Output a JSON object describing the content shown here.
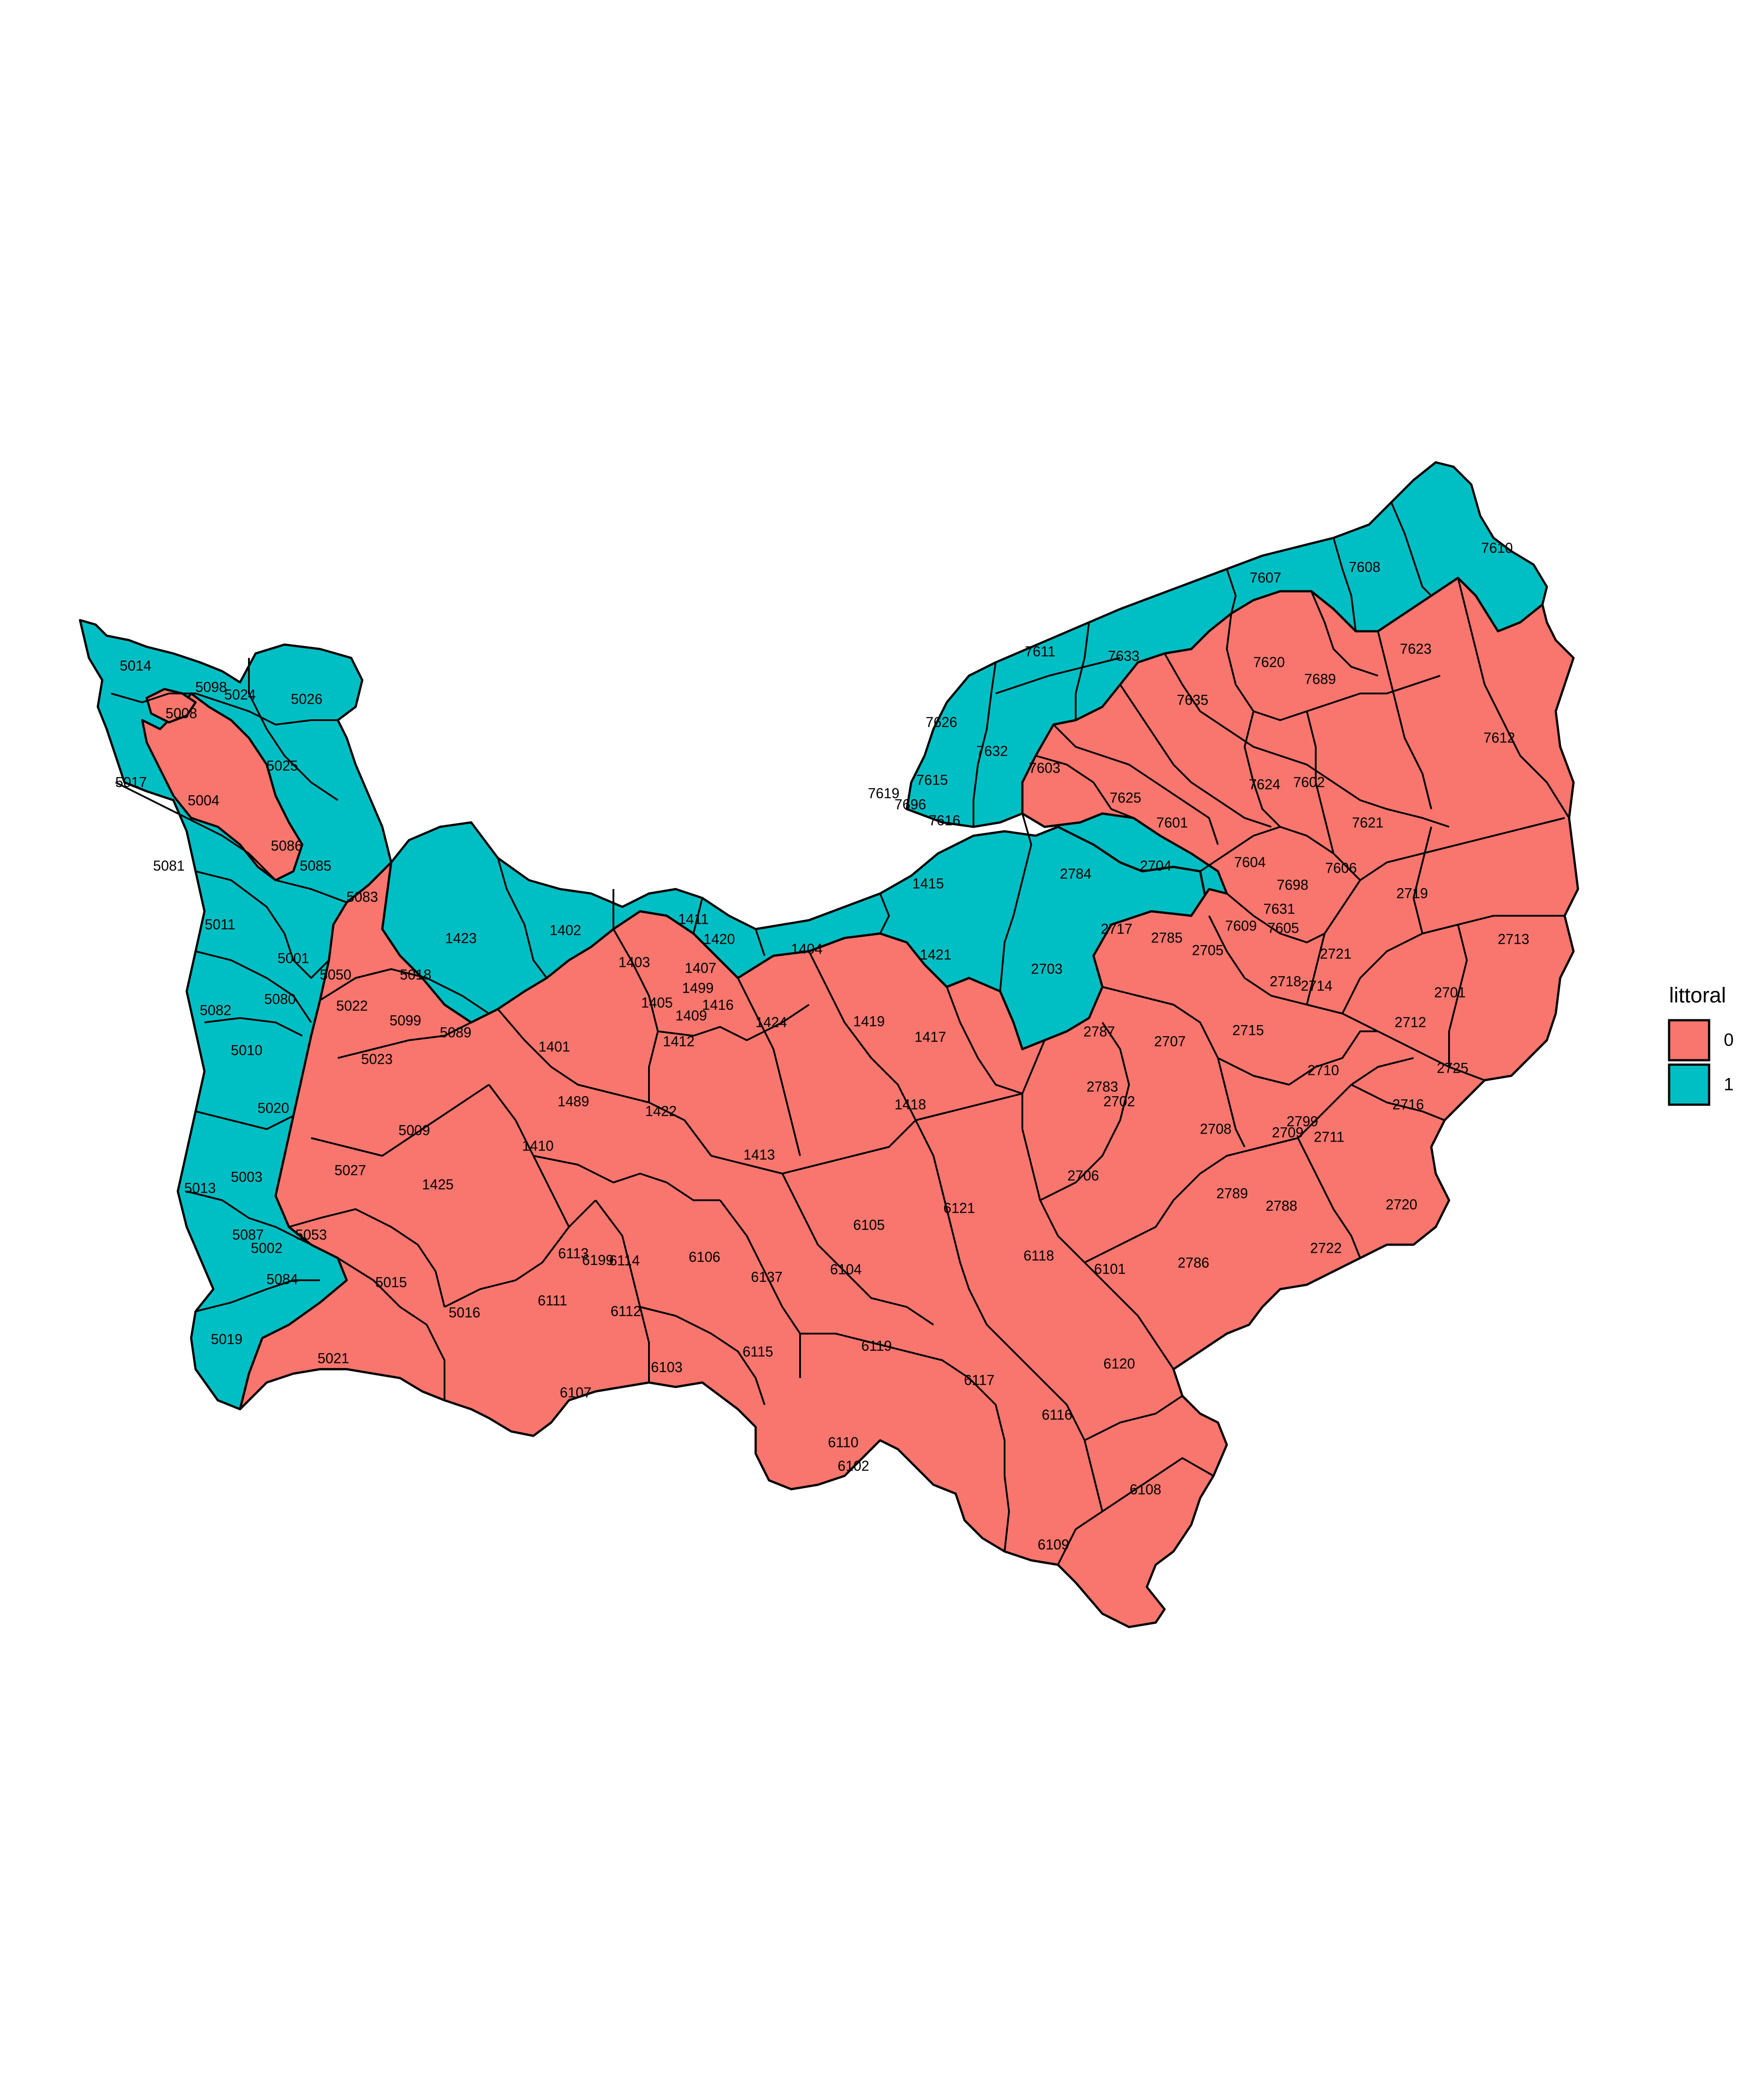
{
  "legend": {
    "title": "littoral",
    "items": [
      {
        "key": "0",
        "label": "0",
        "color": "#F8766D"
      },
      {
        "key": "1",
        "label": "1",
        "color": "#00BFC4"
      }
    ]
  },
  "zones": [
    {
      "id": "5014",
      "label": "5014",
      "littoral": 1
    },
    {
      "id": "5098",
      "label": "5098",
      "littoral": 1
    },
    {
      "id": "5024",
      "label": "5024",
      "littoral": 1
    },
    {
      "id": "5026",
      "label": "5026",
      "littoral": 1
    },
    {
      "id": "5008",
      "label": "5008",
      "littoral": 0
    },
    {
      "id": "5025",
      "label": "5025",
      "littoral": 1
    },
    {
      "id": "5017",
      "label": "5017",
      "littoral": 1
    },
    {
      "id": "5004",
      "label": "5004",
      "littoral": 0
    },
    {
      "id": "5086",
      "label": "5086",
      "littoral": 0
    },
    {
      "id": "5081",
      "label": "5081",
      "littoral": 1
    },
    {
      "id": "5085",
      "label": "5085",
      "littoral": 1
    },
    {
      "id": "5083",
      "label": "5083",
      "littoral": 1
    },
    {
      "id": "5011",
      "label": "5011",
      "littoral": 1
    },
    {
      "id": "5001",
      "label": "5001",
      "littoral": 1
    },
    {
      "id": "5080",
      "label": "5080",
      "littoral": 1
    },
    {
      "id": "5082",
      "label": "5082",
      "littoral": 1
    },
    {
      "id": "5010",
      "label": "5010",
      "littoral": 1
    },
    {
      "id": "5020",
      "label": "5020",
      "littoral": 1
    },
    {
      "id": "5013",
      "label": "5013",
      "littoral": 1
    },
    {
      "id": "5003",
      "label": "5003",
      "littoral": 1
    },
    {
      "id": "5087",
      "label": "5087",
      "littoral": 1
    },
    {
      "id": "5002",
      "label": "5002",
      "littoral": 1
    },
    {
      "id": "5084",
      "label": "5084",
      "littoral": 1
    },
    {
      "id": "5019",
      "label": "5019",
      "littoral": 1
    },
    {
      "id": "5050",
      "label": "5050",
      "littoral": 0
    },
    {
      "id": "5022",
      "label": "5022",
      "littoral": 0
    },
    {
      "id": "5018",
      "label": "5018",
      "littoral": 0
    },
    {
      "id": "5099",
      "label": "5099",
      "littoral": 0
    },
    {
      "id": "5089",
      "label": "5089",
      "littoral": 0
    },
    {
      "id": "5023",
      "label": "5023",
      "littoral": 0
    },
    {
      "id": "5009",
      "label": "5009",
      "littoral": 0
    },
    {
      "id": "5027",
      "label": "5027",
      "littoral": 0
    },
    {
      "id": "5053",
      "label": "5053",
      "littoral": 0
    },
    {
      "id": "5015",
      "label": "5015",
      "littoral": 0
    },
    {
      "id": "5016",
      "label": "5016",
      "littoral": 0
    },
    {
      "id": "5021",
      "label": "5021",
      "littoral": 0
    },
    {
      "id": "1423",
      "label": "1423",
      "littoral": 1
    },
    {
      "id": "1402",
      "label": "1402",
      "littoral": 1
    },
    {
      "id": "1411",
      "label": "1411",
      "littoral": 1
    },
    {
      "id": "1420",
      "label": "1420",
      "littoral": 1
    },
    {
      "id": "1404",
      "label": "1404",
      "littoral": 1
    },
    {
      "id": "1415",
      "label": "1415",
      "littoral": 1
    },
    {
      "id": "1421",
      "label": "1421",
      "littoral": 1
    },
    {
      "id": "2703",
      "label": "2703",
      "littoral": 1
    },
    {
      "id": "2704",
      "label": "2704",
      "littoral": 1
    },
    {
      "id": "1403",
      "label": "1403",
      "littoral": 0
    },
    {
      "id": "1407",
      "label": "1407",
      "littoral": 0
    },
    {
      "id": "1499",
      "label": "1499",
      "littoral": 0
    },
    {
      "id": "1405",
      "label": "1405",
      "littoral": 0
    },
    {
      "id": "1409",
      "label": "1409",
      "littoral": 0
    },
    {
      "id": "1416",
      "label": "1416",
      "littoral": 0
    },
    {
      "id": "1412",
      "label": "1412",
      "littoral": 0
    },
    {
      "id": "1424",
      "label": "1424",
      "littoral": 0
    },
    {
      "id": "1419",
      "label": "1419",
      "littoral": 0
    },
    {
      "id": "1417",
      "label": "1417",
      "littoral": 0
    },
    {
      "id": "1401",
      "label": "1401",
      "littoral": 0
    },
    {
      "id": "1489",
      "label": "1489",
      "littoral": 0
    },
    {
      "id": "1422",
      "label": "1422",
      "littoral": 0
    },
    {
      "id": "1418",
      "label": "1418",
      "littoral": 0
    },
    {
      "id": "1410",
      "label": "1410",
      "littoral": 0
    },
    {
      "id": "1413",
      "label": "1413",
      "littoral": 0
    },
    {
      "id": "1425",
      "label": "1425",
      "littoral": 0
    },
    {
      "id": "7626",
      "label": "7626",
      "littoral": 1
    },
    {
      "id": "7611",
      "label": "7611",
      "littoral": 1
    },
    {
      "id": "7633",
      "label": "7633",
      "littoral": 1
    },
    {
      "id": "7607",
      "label": "7607",
      "littoral": 1
    },
    {
      "id": "7603",
      "label": "7603",
      "littoral": 1
    },
    {
      "id": "7608",
      "label": "7608",
      "littoral": 1
    },
    {
      "id": "7610",
      "label": "7610",
      "littoral": 1
    },
    {
      "id": "7632",
      "label": "7632",
      "littoral": 1
    },
    {
      "id": "7619",
      "label": "7619",
      "littoral": 1
    },
    {
      "id": "7615",
      "label": "7615",
      "littoral": 1
    },
    {
      "id": "7696",
      "label": "7696",
      "littoral": 1
    },
    {
      "id": "7616",
      "label": "7616",
      "littoral": 1
    },
    {
      "id": "7620",
      "label": "7620",
      "littoral": 0
    },
    {
      "id": "7689",
      "label": "7689",
      "littoral": 0
    },
    {
      "id": "7623",
      "label": "7623",
      "littoral": 0
    },
    {
      "id": "7635",
      "label": "7635",
      "littoral": 0
    },
    {
      "id": "7612",
      "label": "7612",
      "littoral": 0
    },
    {
      "id": "7603b",
      "label": "7603",
      "littoral": 0
    },
    {
      "id": "7625",
      "label": "7625",
      "littoral": 0
    },
    {
      "id": "7624",
      "label": "7624",
      "littoral": 0
    },
    {
      "id": "7602",
      "label": "7602",
      "littoral": 0
    },
    {
      "id": "7601",
      "label": "7601",
      "littoral": 0
    },
    {
      "id": "7621",
      "label": "7621",
      "littoral": 0
    },
    {
      "id": "7606",
      "label": "7606",
      "littoral": 0
    },
    {
      "id": "7604",
      "label": "7604",
      "littoral": 0
    },
    {
      "id": "7631",
      "label": "7631",
      "littoral": 0
    },
    {
      "id": "7609",
      "label": "7609",
      "littoral": 0
    },
    {
      "id": "7605",
      "label": "7605",
      "littoral": 0
    },
    {
      "id": "7698",
      "label": "7698",
      "littoral": 0
    },
    {
      "id": "2784",
      "label": "2784",
      "littoral": 0
    },
    {
      "id": "2717",
      "label": "2717",
      "littoral": 0
    },
    {
      "id": "2785",
      "label": "2785",
      "littoral": 0
    },
    {
      "id": "2705",
      "label": "2705",
      "littoral": 0
    },
    {
      "id": "2719",
      "label": "2719",
      "littoral": 0
    },
    {
      "id": "2713",
      "label": "2713",
      "littoral": 0
    },
    {
      "id": "2721",
      "label": "2721",
      "littoral": 0
    },
    {
      "id": "2718",
      "label": "2718",
      "littoral": 0
    },
    {
      "id": "2714",
      "label": "2714",
      "littoral": 0
    },
    {
      "id": "2701",
      "label": "2701",
      "littoral": 0
    },
    {
      "id": "2787",
      "label": "2787",
      "littoral": 0
    },
    {
      "id": "2707",
      "label": "2707",
      "littoral": 0
    },
    {
      "id": "2715",
      "label": "2715",
      "littoral": 0
    },
    {
      "id": "2712",
      "label": "2712",
      "littoral": 0
    },
    {
      "id": "2725",
      "label": "2725",
      "littoral": 0
    },
    {
      "id": "2783",
      "label": "2783",
      "littoral": 0
    },
    {
      "id": "2702",
      "label": "2702",
      "littoral": 0
    },
    {
      "id": "2710",
      "label": "2710",
      "littoral": 0
    },
    {
      "id": "2716",
      "label": "2716",
      "littoral": 0
    },
    {
      "id": "2799",
      "label": "2799",
      "littoral": 0
    },
    {
      "id": "2709",
      "label": "2709",
      "littoral": 0
    },
    {
      "id": "2711",
      "label": "2711",
      "littoral": 0
    },
    {
      "id": "2708",
      "label": "2708",
      "littoral": 0
    },
    {
      "id": "2706",
      "label": "2706",
      "littoral": 0
    },
    {
      "id": "2789",
      "label": "2789",
      "littoral": 0
    },
    {
      "id": "2788",
      "label": "2788",
      "littoral": 0
    },
    {
      "id": "2720",
      "label": "2720",
      "littoral": 0
    },
    {
      "id": "2722",
      "label": "2722",
      "littoral": 0
    },
    {
      "id": "2786",
      "label": "2786",
      "littoral": 0
    },
    {
      "id": "6121",
      "label": "6121",
      "littoral": 0
    },
    {
      "id": "6105",
      "label": "6105",
      "littoral": 0
    },
    {
      "id": "6118",
      "label": "6118",
      "littoral": 0
    },
    {
      "id": "6101",
      "label": "6101",
      "littoral": 0
    },
    {
      "id": "6106",
      "label": "6106",
      "littoral": 0
    },
    {
      "id": "6113",
      "label": "6113",
      "littoral": 0
    },
    {
      "id": "6199",
      "label": "6199",
      "littoral": 0
    },
    {
      "id": "6114",
      "label": "6114",
      "littoral": 0
    },
    {
      "id": "6104",
      "label": "6104",
      "littoral": 0
    },
    {
      "id": "6137",
      "label": "6137",
      "littoral": 0
    },
    {
      "id": "6111",
      "label": "6111",
      "littoral": 0
    },
    {
      "id": "6112",
      "label": "6112",
      "littoral": 0
    },
    {
      "id": "6115",
      "label": "6115",
      "littoral": 0
    },
    {
      "id": "6119",
      "label": "6119",
      "littoral": 0
    },
    {
      "id": "6117",
      "label": "6117",
      "littoral": 0
    },
    {
      "id": "6120",
      "label": "6120",
      "littoral": 0
    },
    {
      "id": "6103",
      "label": "6103",
      "littoral": 0
    },
    {
      "id": "6107",
      "label": "6107",
      "littoral": 0
    },
    {
      "id": "6116",
      "label": "6116",
      "littoral": 0
    },
    {
      "id": "6110",
      "label": "6110",
      "littoral": 0
    },
    {
      "id": "6102",
      "label": "6102",
      "littoral": 0
    },
    {
      "id": "6108",
      "label": "6108",
      "littoral": 0
    },
    {
      "id": "6109",
      "label": "6109",
      "littoral": 0
    }
  ]
}
